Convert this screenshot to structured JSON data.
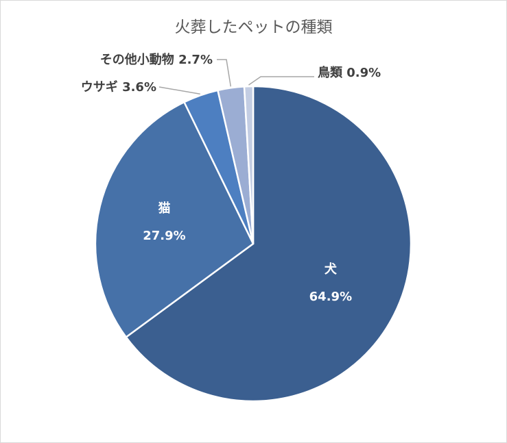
{
  "chart_data": {
    "type": "pie",
    "title": "火葬したペットの種類",
    "categories": [
      "犬",
      "猫",
      "ウサギ",
      "その他小動物",
      "鳥類"
    ],
    "values": [
      64.9,
      27.9,
      3.6,
      2.7,
      0.9
    ],
    "value_labels": [
      "64.9%",
      "27.9%",
      "3.6%",
      "2.7%",
      "0.9%"
    ],
    "colors": [
      "#3b5f90",
      "#4671a8",
      "#4d7fc1",
      "#9badd3",
      "#c3cde3"
    ],
    "label_placement": [
      "inside",
      "inside",
      "outside",
      "outside",
      "outside"
    ],
    "legend": "none",
    "start": "12 o'clock, clockwise"
  }
}
